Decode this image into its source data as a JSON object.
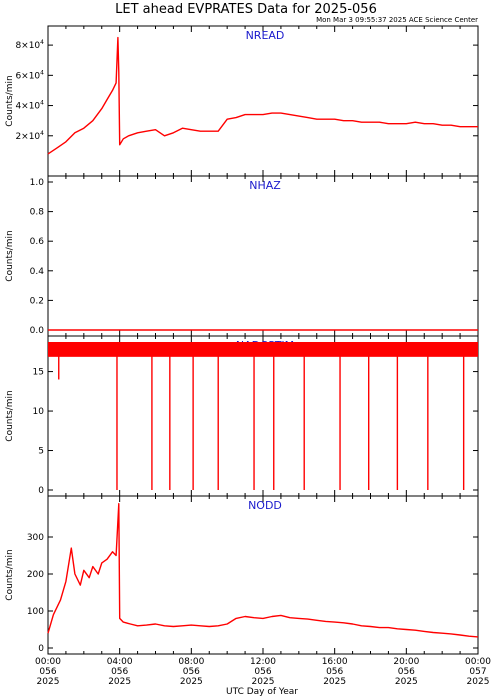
{
  "chart_data": {
    "title": "LET ahead EVPRATES Data for 2025-056",
    "subtitle": "Mon Mar  3 09:55:37 2025 ACE Science Center",
    "xlabel": "UTC Day of Year",
    "x_ticks": [
      {
        "hour": 0,
        "time": "00:00",
        "doy": "056",
        "year": "2025"
      },
      {
        "hour": 4,
        "time": "04:00",
        "doy": "056",
        "year": "2025"
      },
      {
        "hour": 8,
        "time": "08:00",
        "doy": "056",
        "year": "2025"
      },
      {
        "hour": 12,
        "time": "12:00",
        "doy": "056",
        "year": "2025"
      },
      {
        "hour": 16,
        "time": "16:00",
        "doy": "056",
        "year": "2025"
      },
      {
        "hour": 20,
        "time": "20:00",
        "doy": "056",
        "year": "2025"
      },
      {
        "hour": 24,
        "time": "00:00",
        "doy": "057",
        "year": "2025"
      }
    ],
    "xlim": [
      0,
      24
    ],
    "line_color": "#ff0000",
    "label_color": "#1a1acc",
    "panels": [
      {
        "type": "line",
        "name": "NREAD",
        "ylabel": "Counts/min",
        "ylim": [
          0,
          90000
        ],
        "yticks": [
          {
            "v": 20000,
            "m": "2",
            "e": "4"
          },
          {
            "v": 40000,
            "m": "4",
            "e": "4"
          },
          {
            "v": 60000,
            "m": "6",
            "e": "4"
          },
          {
            "v": 80000,
            "m": "8",
            "e": "4"
          }
        ],
        "x": [
          0,
          0.5,
          1.0,
          1.5,
          2.0,
          2.5,
          3.0,
          3.3,
          3.6,
          3.8,
          3.9,
          3.95,
          4.0,
          4.2,
          4.5,
          5.0,
          5.5,
          6.0,
          6.5,
          7.0,
          7.5,
          8.0,
          8.5,
          9.0,
          9.5,
          10.0,
          10.5,
          11.0,
          11.5,
          12.0,
          12.5,
          13.0,
          13.5,
          14.0,
          14.5,
          15.0,
          15.5,
          16.0,
          16.5,
          17.0,
          17.5,
          18.0,
          18.5,
          19.0,
          19.5,
          20.0,
          20.5,
          21.0,
          21.5,
          22.0,
          22.5,
          23.0,
          23.5,
          24.0
        ],
        "y": [
          8000,
          12000,
          16000,
          22000,
          25000,
          30000,
          38000,
          44000,
          50000,
          55000,
          85000,
          62000,
          14000,
          18000,
          20000,
          22000,
          23000,
          24000,
          20000,
          22000,
          25000,
          24000,
          23000,
          23000,
          23000,
          31000,
          32000,
          34000,
          34000,
          34000,
          35000,
          35000,
          34000,
          33000,
          32000,
          31000,
          31000,
          31000,
          30000,
          30000,
          29000,
          29000,
          29000,
          28000,
          28000,
          28000,
          29000,
          28000,
          28000,
          27000,
          27000,
          26000,
          26000,
          26000
        ]
      },
      {
        "type": "line",
        "name": "NHAZ",
        "ylabel": "Counts/min",
        "ylim": [
          0,
          1.0
        ],
        "yticks": [
          {
            "v": 0.0,
            "t": "0.0"
          },
          {
            "v": 0.2,
            "t": "0.2"
          },
          {
            "v": 0.4,
            "t": "0.4"
          },
          {
            "v": 0.6,
            "t": "0.6"
          },
          {
            "v": 0.8,
            "t": "0.8"
          },
          {
            "v": 1.0,
            "t": "1.0"
          }
        ],
        "x": [
          0,
          24
        ],
        "y": [
          0,
          0
        ]
      },
      {
        "type": "line",
        "name": "NADCSTIM",
        "ylabel": "Counts/min",
        "ylim": [
          0,
          19
        ],
        "yticks": [
          {
            "v": 0,
            "t": "0"
          },
          {
            "v": 5,
            "t": "5"
          },
          {
            "v": 10,
            "t": "10"
          },
          {
            "v": 15,
            "t": "15"
          }
        ],
        "baseline": 17.5,
        "dips": [
          {
            "x": 0.6,
            "y": 14
          },
          {
            "x": 3.85,
            "y": 0
          },
          {
            "x": 5.8,
            "y": 0
          },
          {
            "x": 6.8,
            "y": 0
          },
          {
            "x": 8.1,
            "y": 0
          },
          {
            "x": 9.5,
            "y": 0
          },
          {
            "x": 11.5,
            "y": 0
          },
          {
            "x": 12.6,
            "y": 0
          },
          {
            "x": 14.3,
            "y": 0
          },
          {
            "x": 16.3,
            "y": 0
          },
          {
            "x": 17.9,
            "y": 0
          },
          {
            "x": 19.5,
            "y": 0
          },
          {
            "x": 21.2,
            "y": 0
          },
          {
            "x": 23.2,
            "y": 0
          }
        ]
      },
      {
        "type": "line",
        "name": "NODD",
        "ylabel": "Counts/min",
        "ylim": [
          0,
          400
        ],
        "yticks": [
          {
            "v": 0,
            "t": "0"
          },
          {
            "v": 100,
            "t": "100"
          },
          {
            "v": 200,
            "t": "200"
          },
          {
            "v": 300,
            "t": "300"
          }
        ],
        "x": [
          0,
          0.3,
          0.7,
          1.0,
          1.3,
          1.5,
          1.8,
          2.0,
          2.3,
          2.5,
          2.8,
          3.0,
          3.3,
          3.6,
          3.8,
          3.95,
          4.0,
          4.2,
          4.6,
          5.0,
          5.5,
          6.0,
          6.5,
          7.0,
          7.5,
          8.0,
          8.5,
          9.0,
          9.5,
          10.0,
          10.5,
          11.0,
          11.5,
          12.0,
          12.5,
          13.0,
          13.5,
          14.0,
          14.5,
          15.0,
          15.5,
          16.0,
          16.5,
          17.0,
          17.5,
          18.0,
          18.5,
          19.0,
          19.5,
          20.0,
          20.5,
          21.0,
          21.5,
          22.0,
          22.5,
          23.0,
          23.5,
          24.0
        ],
        "y": [
          40,
          90,
          130,
          180,
          270,
          200,
          170,
          210,
          190,
          220,
          200,
          230,
          240,
          260,
          250,
          390,
          80,
          70,
          65,
          60,
          62,
          65,
          60,
          58,
          60,
          62,
          60,
          58,
          60,
          65,
          80,
          85,
          82,
          80,
          85,
          88,
          82,
          80,
          78,
          75,
          72,
          70,
          68,
          65,
          60,
          58,
          55,
          55,
          52,
          50,
          48,
          45,
          42,
          40,
          38,
          35,
          32,
          30
        ]
      }
    ]
  }
}
